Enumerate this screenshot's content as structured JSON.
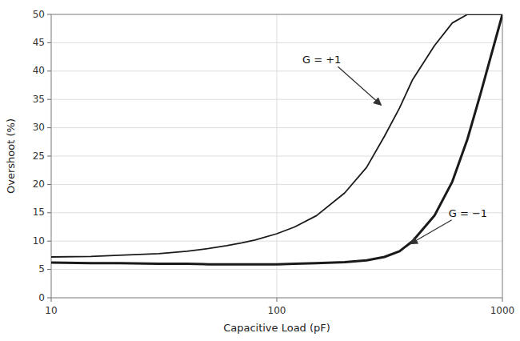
{
  "chart_data": {
    "type": "line",
    "xlabel": "Capacitive Load (pF)",
    "ylabel": "Overshoot (%)",
    "log": "x",
    "grid": true,
    "xlim": [
      10,
      1000
    ],
    "ylim": [
      0,
      50
    ],
    "xticks": [
      10,
      100,
      1000
    ],
    "yticks": [
      0,
      5,
      10,
      15,
      20,
      25,
      30,
      35,
      40,
      45,
      50
    ],
    "x": [
      10,
      15,
      20,
      30,
      40,
      50,
      60,
      70,
      80,
      100,
      120,
      150,
      200,
      250,
      300,
      350,
      400,
      500,
      600,
      700,
      800,
      1000
    ],
    "series": [
      {
        "color": "#1a1a1a",
        "values": [
          7.2,
          7.3,
          7.5,
          7.8,
          8.2,
          8.7,
          9.2,
          9.7,
          10.2,
          11.3,
          12.5,
          14.5,
          18.5,
          23.0,
          28.5,
          33.5,
          38.5,
          44.5,
          48.5,
          50.0,
          50.0,
          50.0
        ]
      },
      {
        "color": "#1a1a1a",
        "values": [
          6.2,
          6.1,
          6.1,
          6.0,
          6.0,
          5.9,
          5.9,
          5.9,
          5.9,
          5.9,
          6.0,
          6.1,
          6.3,
          6.6,
          7.2,
          8.2,
          10.0,
          14.5,
          20.5,
          28.0,
          36.0,
          50.0
        ]
      }
    ],
    "annotations": [
      {
        "text": "G = +1",
        "x": 290,
        "y": 34
      },
      {
        "text": "G = −1",
        "x": 390,
        "y": 9.5
      }
    ]
  }
}
